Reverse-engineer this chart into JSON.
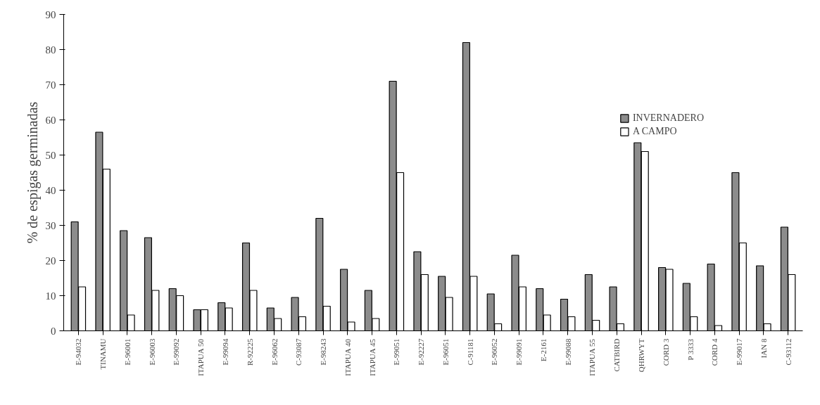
{
  "chart_data": {
    "type": "bar",
    "ylabel": "% de espigas germinadas",
    "categories": [
      "E-94032",
      "TINAMU",
      "E-96001",
      "E-96003",
      "E-99092",
      "ITAPUA 50",
      "E-99094",
      "R-92225",
      "E-96062",
      "C-93087",
      "E-98243",
      "ITAPUA 40",
      "ITAPUA 45",
      "E-99051",
      "E-92227",
      "E-96051",
      "C-91181",
      "E-96052",
      "E-99091",
      "E-2161",
      "E-99088",
      "ITAPUA 55",
      "CATBIRD",
      "QHRWYT",
      "CORD 3",
      "P 3333",
      "CORD 4",
      "E-99017",
      "IAN 8",
      "C-93112"
    ],
    "series": [
      {
        "name": "INVERNADERO",
        "color": "#8c8c8c",
        "values": [
          31,
          56.5,
          28.5,
          26.5,
          12,
          6,
          8,
          25,
          6.5,
          9.5,
          32,
          17.5,
          11.5,
          71,
          22.5,
          15.5,
          82,
          10.5,
          21.5,
          12,
          9,
          16,
          12.5,
          53.5,
          18,
          13.5,
          19,
          45,
          18.5,
          29.5
        ]
      },
      {
        "name": "A CAMPO",
        "color": "#ffffff",
        "values": [
          12.5,
          46,
          4.5,
          11.5,
          10,
          6,
          6.5,
          11.5,
          3.5,
          4,
          7,
          2.5,
          3.5,
          45,
          16,
          9.5,
          15.5,
          2,
          12.5,
          4.5,
          4,
          3,
          2,
          51,
          17.5,
          4,
          1.5,
          25,
          2,
          16
        ]
      }
    ],
    "ylim": [
      0,
      90
    ],
    "yticks": [
      0,
      10,
      20,
      30,
      40,
      50,
      60,
      70,
      80,
      90
    ],
    "grid": false,
    "legend": "top right"
  }
}
